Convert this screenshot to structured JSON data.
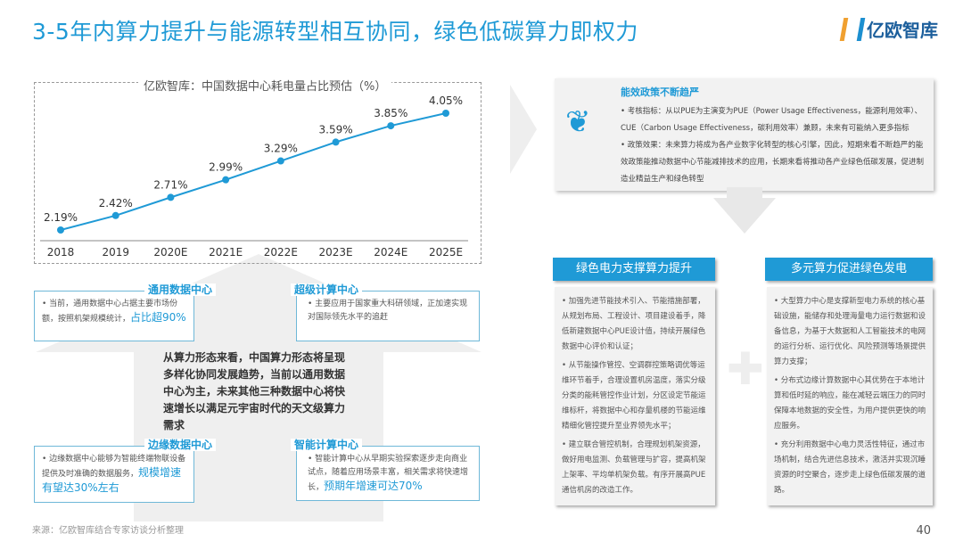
{
  "title": "3-5年内算力提升与能源转型相互协同，绿色低碳算力即权力",
  "logo": "亿欧智库",
  "chart_data": {
    "type": "line",
    "title": "亿欧智库：中国数据中心耗电量占比预估（%）",
    "categories": [
      "2018",
      "2019",
      "2020E",
      "2021E",
      "2022E",
      "2023E",
      "2024E",
      "2025E"
    ],
    "values": [
      2.19,
      2.42,
      2.71,
      2.99,
      3.29,
      3.59,
      3.85,
      4.05
    ],
    "labels": [
      "2.19%",
      "2.42%",
      "2.71%",
      "2.99%",
      "3.29%",
      "3.59%",
      "3.85%",
      "4.05%"
    ],
    "color": "#1f9ad6",
    "ylim": [
      1.8,
      4.3
    ]
  },
  "cards": {
    "general": {
      "title": "通用数据中心",
      "text": "•   当前，通用数据中心占据主要市场份额，按照机架规模统计，",
      "highlight": "占比超90%"
    },
    "super": {
      "title": "超级计算中心",
      "text": "•   主要应用于国家重大科研领域，正加速实现对国际领先水平的追赶"
    },
    "edge": {
      "title": "边缘数据中心",
      "text": "•   边缘数据中心能够为智能终端物联设备提供及时准确的数据服务，",
      "highlight": "规模增速有望达30%左右"
    },
    "ai": {
      "title": "智能计算中心",
      "text": "•   智能计算中心从早期实验探索逐步走向商业试点，随着应用场景丰富，相关需求将快速增长，",
      "highlight": "预期年增速可达70%"
    }
  },
  "center_text": "从算力形态来看，中国算力形态将呈现多样化协同发展趋势，当前以通用数据中心为主，未来其他三种数据中心将快速增长以满足元宇宙时代的天文级算力需求",
  "policy": {
    "title": "能效政策不断趋严",
    "items": [
      "•  考核指标：从以PUE为主演变为PUE（Power Usage Effectiveness，能源利用效率）、CUE（Carbon Usage Effectiveness，碳利用效率）兼顾，未来有可能纳入更多指标",
      "•  政策效果：未来算力将成为各产业数字化转型的核心引擎，因此，短期来看不断趋严的能效政策能推动数据中心节能减排技术的应用，长期来看将推动各产业绿色低碳发展，促进制造业精益生产和绿色转型"
    ]
  },
  "green": {
    "title": "绿色电力支撑算力提升",
    "items": [
      "•   加强先进节能技术引入、节能措施部署，从规划布局、工程设计、项目建设着手，降低新建数据中心PUE设计值，持续开展绿色数据中心评价和认证；",
      "•   从节能操作管控、空调群控策略调优等运维环节着手，合理设置机房温度，落实分级分类的能耗管控作业计划，分区设定节能运维标杆，将数据中心和存量机楼的节能运维精细化管控提升至业界领先水平；",
      "•   建立联合管控机制，合理规划机架资源，做好用电监测、负载管理与扩容，提高机架上架率、平均单机架负载。有序开展高PUE通信机房的改造工作。"
    ]
  },
  "multi": {
    "title": "多元算力促进绿色发电",
    "items": [
      "•   大型算力中心是支撑新型电力系统的核心基础设施，能储存和处理海量电力运行数据和设备信息，为基于大数据和人工智能技术的电网的运行分析、运行优化、风险预测等场景提供算力支撑；",
      "•   分布式边缘计算数据中心其优势在于本地计算和低时延的响应，能在减轻云端压力的同时保障本地数据的安全性，为用户提供更快的响应服务。",
      "•   充分利用数据中心电力灵活性特征，通过市场机制，结合先进信息技术，激活并实现沉睡资源的时空聚合，逐步走上绿色低碳发展的道路。"
    ]
  },
  "source": "来源：亿欧智库结合专家访谈分析整理",
  "page": "40"
}
